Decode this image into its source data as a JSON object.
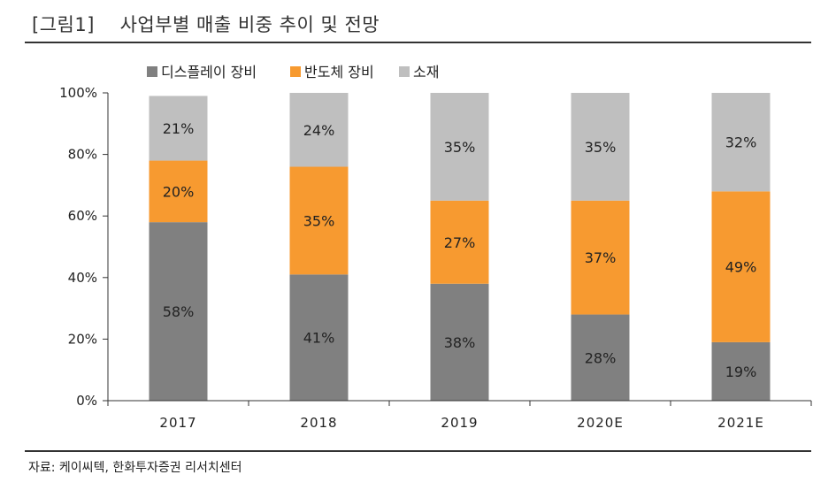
{
  "header": {
    "figure_label": "[그림1]",
    "title": "사업부별 매출 비중 추이 및 전망"
  },
  "source": "자료: 케이씨텍, 한화투자증권 리서치센터",
  "chart_data": {
    "type": "bar",
    "stacked": true,
    "categories": [
      "2017",
      "2018",
      "2019",
      "2020E",
      "2021E"
    ],
    "series": [
      {
        "name": "디스플레이 장비",
        "color": "#808080",
        "values": [
          58,
          41,
          38,
          28,
          19
        ],
        "labels": [
          "58%",
          "41%",
          "38%",
          "28%",
          "19%"
        ]
      },
      {
        "name": "반도체 장비",
        "color": "#F79A30",
        "values": [
          20,
          35,
          27,
          37,
          49
        ],
        "labels": [
          "20%",
          "35%",
          "27%",
          "37%",
          "49%"
        ]
      },
      {
        "name": "소재",
        "color": "#BFBFBF",
        "values": [
          21,
          24,
          35,
          35,
          32
        ],
        "labels": [
          "21%",
          "24%",
          "35%",
          "35%",
          "32%"
        ]
      }
    ],
    "y_ticks": [
      "0%",
      "20%",
      "40%",
      "60%",
      "80%",
      "100%"
    ],
    "ylim": [
      0,
      100
    ],
    "legend_position": "top",
    "grid": false
  }
}
